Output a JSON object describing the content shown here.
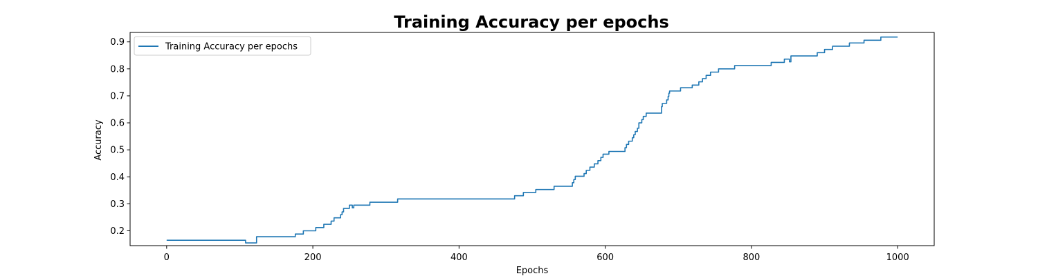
{
  "chart_data": {
    "type": "line",
    "title": "Training Accuracy per epochs",
    "xlabel": "Epochs",
    "ylabel": "Accuracy",
    "xlim": [
      -50,
      1050
    ],
    "ylim": [
      0.145,
      0.935
    ],
    "xticks": [
      0,
      200,
      400,
      600,
      800,
      1000
    ],
    "yticks": [
      0.2,
      0.3,
      0.4,
      0.5,
      0.6,
      0.7,
      0.8,
      0.9
    ],
    "xtick_labels": [
      "0",
      "200",
      "400",
      "600",
      "800",
      "1000"
    ],
    "ytick_labels": [
      "0.2",
      "0.3",
      "0.4",
      "0.5",
      "0.6",
      "0.7",
      "0.8",
      "0.9"
    ],
    "grid": false,
    "legend_position": "top-left",
    "series": [
      {
        "name": "Training Accuracy per epochs",
        "color": "#1f77b4",
        "style": "step",
        "points": [
          [
            0,
            0.165
          ],
          [
            108,
            0.165
          ],
          [
            108,
            0.155
          ],
          [
            123,
            0.155
          ],
          [
            123,
            0.178
          ],
          [
            176,
            0.178
          ],
          [
            176,
            0.188
          ],
          [
            187,
            0.188
          ],
          [
            187,
            0.2
          ],
          [
            204,
            0.2
          ],
          [
            204,
            0.212
          ],
          [
            215,
            0.212
          ],
          [
            215,
            0.224
          ],
          [
            225,
            0.224
          ],
          [
            225,
            0.236
          ],
          [
            229,
            0.236
          ],
          [
            229,
            0.248
          ],
          [
            238,
            0.248
          ],
          [
            238,
            0.26
          ],
          [
            240,
            0.26
          ],
          [
            240,
            0.27
          ],
          [
            242,
            0.27
          ],
          [
            242,
            0.283
          ],
          [
            250,
            0.283
          ],
          [
            250,
            0.295
          ],
          [
            254,
            0.295
          ],
          [
            254,
            0.285
          ],
          [
            256,
            0.285
          ],
          [
            256,
            0.295
          ],
          [
            278,
            0.295
          ],
          [
            278,
            0.306
          ],
          [
            316,
            0.306
          ],
          [
            316,
            0.318
          ],
          [
            476,
            0.318
          ],
          [
            476,
            0.33
          ],
          [
            488,
            0.33
          ],
          [
            488,
            0.342
          ],
          [
            505,
            0.342
          ],
          [
            505,
            0.353
          ],
          [
            530,
            0.353
          ],
          [
            530,
            0.365
          ],
          [
            555,
            0.365
          ],
          [
            555,
            0.378
          ],
          [
            557,
            0.378
          ],
          [
            557,
            0.39
          ],
          [
            559,
            0.39
          ],
          [
            559,
            0.402
          ],
          [
            571,
            0.402
          ],
          [
            571,
            0.412
          ],
          [
            574,
            0.412
          ],
          [
            574,
            0.424
          ],
          [
            579,
            0.424
          ],
          [
            579,
            0.436
          ],
          [
            585,
            0.436
          ],
          [
            585,
            0.448
          ],
          [
            590,
            0.448
          ],
          [
            590,
            0.46
          ],
          [
            594,
            0.46
          ],
          [
            594,
            0.472
          ],
          [
            597,
            0.472
          ],
          [
            597,
            0.484
          ],
          [
            605,
            0.484
          ],
          [
            605,
            0.494
          ],
          [
            627,
            0.494
          ],
          [
            627,
            0.508
          ],
          [
            629,
            0.508
          ],
          [
            629,
            0.52
          ],
          [
            632,
            0.52
          ],
          [
            632,
            0.532
          ],
          [
            637,
            0.532
          ],
          [
            637,
            0.545
          ],
          [
            639,
            0.545
          ],
          [
            639,
            0.556
          ],
          [
            641,
            0.556
          ],
          [
            641,
            0.568
          ],
          [
            644,
            0.568
          ],
          [
            644,
            0.58
          ],
          [
            646,
            0.58
          ],
          [
            646,
            0.6
          ],
          [
            650,
            0.6
          ],
          [
            650,
            0.612
          ],
          [
            652,
            0.612
          ],
          [
            652,
            0.624
          ],
          [
            656,
            0.624
          ],
          [
            656,
            0.636
          ],
          [
            677,
            0.636
          ],
          [
            677,
            0.66
          ],
          [
            678,
            0.66
          ],
          [
            678,
            0.672
          ],
          [
            684,
            0.672
          ],
          [
            684,
            0.685
          ],
          [
            686,
            0.685
          ],
          [
            686,
            0.698
          ],
          [
            687,
            0.698
          ],
          [
            687,
            0.71
          ],
          [
            688,
            0.71
          ],
          [
            688,
            0.718
          ],
          [
            703,
            0.718
          ],
          [
            703,
            0.73
          ],
          [
            719,
            0.73
          ],
          [
            719,
            0.74
          ],
          [
            728,
            0.74
          ],
          [
            728,
            0.752
          ],
          [
            733,
            0.752
          ],
          [
            733,
            0.764
          ],
          [
            738,
            0.764
          ],
          [
            738,
            0.776
          ],
          [
            744,
            0.776
          ],
          [
            744,
            0.788
          ],
          [
            755,
            0.788
          ],
          [
            755,
            0.8
          ],
          [
            777,
            0.8
          ],
          [
            777,
            0.812
          ],
          [
            827,
            0.812
          ],
          [
            827,
            0.824
          ],
          [
            845,
            0.824
          ],
          [
            845,
            0.836
          ],
          [
            852,
            0.836
          ],
          [
            852,
            0.826
          ],
          [
            854,
            0.826
          ],
          [
            854,
            0.848
          ],
          [
            890,
            0.848
          ],
          [
            890,
            0.86
          ],
          [
            900,
            0.86
          ],
          [
            900,
            0.872
          ],
          [
            911,
            0.872
          ],
          [
            911,
            0.884
          ],
          [
            934,
            0.884
          ],
          [
            934,
            0.896
          ],
          [
            954,
            0.896
          ],
          [
            954,
            0.906
          ],
          [
            977,
            0.906
          ],
          [
            977,
            0.918
          ],
          [
            1000,
            0.918
          ]
        ]
      }
    ]
  }
}
